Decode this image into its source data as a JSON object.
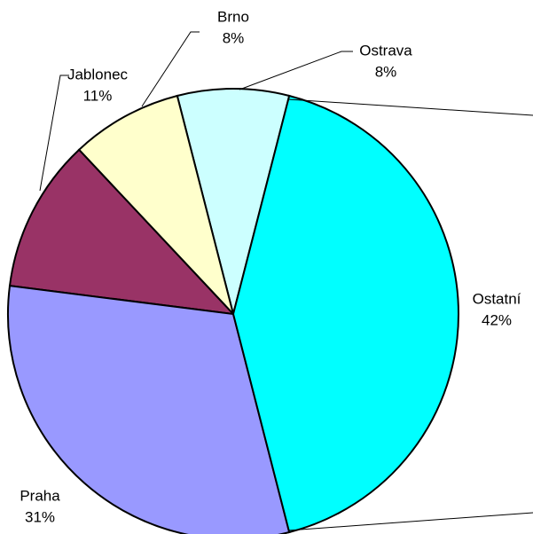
{
  "chart_data": {
    "type": "pie",
    "categories": [
      "Ostatní",
      "Praha",
      "Jablonec",
      "Brno",
      "Ostrava"
    ],
    "values": [
      42,
      31,
      11,
      8,
      8
    ],
    "value_labels": [
      "42%",
      "31%",
      "11%",
      "8%",
      "8%"
    ],
    "colors": [
      "#00ffff",
      "#9999ff",
      "#993366",
      "#ffffcc",
      "#ccffff"
    ]
  }
}
